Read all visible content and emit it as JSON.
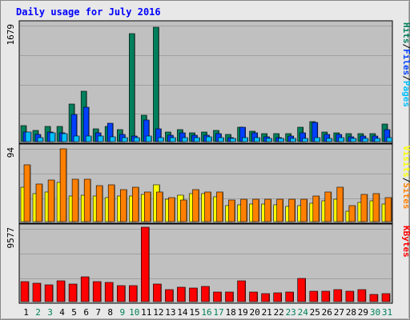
{
  "chart_data": {
    "type": "bar",
    "title": "Daily usage for July 2016",
    "categories": [
      "1",
      "2",
      "3",
      "4",
      "5",
      "6",
      "7",
      "8",
      "9",
      "10",
      "11",
      "12",
      "13",
      "14",
      "15",
      "16",
      "17",
      "18",
      "19",
      "20",
      "21",
      "22",
      "23",
      "24",
      "25",
      "26",
      "27",
      "28",
      "29",
      "30",
      "31"
    ],
    "weekend_days": [
      "2",
      "3",
      "9",
      "10",
      "16",
      "17",
      "23",
      "24",
      "30",
      "31"
    ],
    "colors": {
      "hits": "#00805c",
      "files": "#0040ff",
      "pages": "#00c0ff",
      "visits": "#ffff00",
      "sites": "#ff8000",
      "kbytes": "#ff0000",
      "weekend_label": "#00805c",
      "weekday_label": "#000000",
      "title": "#0000ff",
      "plot_bg": "#c0c0c0",
      "page_bg": "#e8e8e8"
    },
    "panels": [
      {
        "id": "top",
        "ymax_label": "1679",
        "ylim": [
          0,
          1679
        ],
        "legend": [
          "Pages",
          "Files",
          "Hits"
        ],
        "legend_colors": [
          "#00c0ff",
          "#0040ff",
          "#00805c"
        ],
        "series": [
          {
            "name": "Hits",
            "color": "#00805c",
            "values": [
              228,
              160,
              215,
              218,
              540,
              720,
              180,
              214,
              170,
              1540,
              380,
              1630,
              140,
              170,
              130,
              140,
              160,
              100,
              210,
              150,
              110,
              110,
              110,
              210,
              280,
              140,
              130,
              110,
              110,
              110,
              250
            ]
          },
          {
            "name": "Files",
            "color": "#0040ff",
            "values": [
              140,
              100,
              140,
              120,
              390,
              490,
              130,
              260,
              100,
              80,
              310,
              180,
              90,
              120,
              90,
              90,
              110,
              60,
              200,
              120,
              70,
              60,
              80,
              120,
              270,
              100,
              100,
              70,
              80,
              80,
              170
            ]
          },
          {
            "name": "Pages",
            "color": "#00c0ff",
            "values": [
              140,
              60,
              130,
              110,
              80,
              80,
              80,
              70,
              60,
              60,
              80,
              60,
              60,
              60,
              60,
              70,
              60,
              50,
              60,
              60,
              40,
              40,
              50,
              40,
              60,
              50,
              60,
              40,
              50,
              50,
              60
            ]
          }
        ]
      },
      {
        "id": "middle",
        "ymax_label": "94",
        "ylim": [
          0,
          94
        ],
        "legend": [
          "Sites",
          "/",
          "Visits"
        ],
        "legend_colors": [
          "#ff8000",
          "#000000",
          "#ffff00"
        ],
        "series": [
          {
            "name": "Visits",
            "color": "#ffff00",
            "values": [
              43,
              35,
              37,
              50,
              32,
              33,
              32,
              30,
              32,
              32,
              34,
              46,
              28,
              33,
              35,
              35,
              31,
              20,
              21,
              22,
              22,
              21,
              19,
              20,
              23,
              26,
              28,
              13,
              24,
              26,
              22
            ]
          },
          {
            "name": "Sites",
            "color": "#ff8000",
            "values": [
              72,
              47,
              53,
              92,
              54,
              54,
              45,
              46,
              40,
              43,
              37,
              37,
              30,
              27,
              40,
              37,
              37,
              27,
              28,
              28,
              28,
              28,
              28,
              28,
              32,
              37,
              43,
              20,
              34,
              35,
              30
            ]
          }
        ]
      },
      {
        "id": "bottom",
        "ymax_label": "9577",
        "ylim": [
          0,
          9577
        ],
        "legend": [
          "KBytes"
        ],
        "legend_colors": [
          "#ff0000"
        ],
        "series": [
          {
            "name": "KBytes",
            "color": "#ff0000",
            "values": [
              2560,
              2350,
              2150,
              2640,
              2250,
              3160,
              2620,
              2450,
              2080,
              2010,
              9577,
              2240,
              1560,
              1830,
              1770,
              1980,
              1200,
              1230,
              2630,
              1220,
              1060,
              1130,
              1190,
              2960,
              1380,
              1290,
              1570,
              1390,
              1520,
              950,
              1080
            ]
          }
        ]
      }
    ]
  }
}
